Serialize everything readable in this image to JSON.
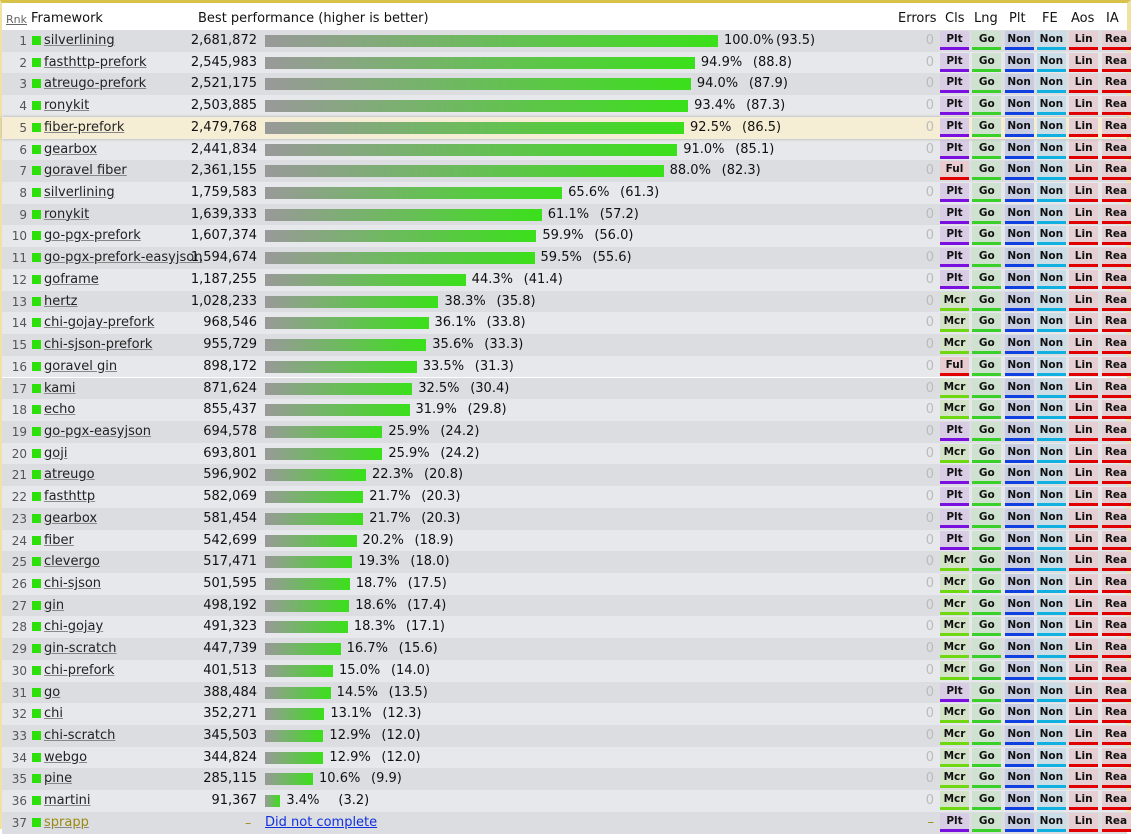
{
  "header": {
    "rank": "Rnk",
    "framework": "Framework",
    "performance": "Best performance (higher is better)",
    "errors": "Errors",
    "cls": "Cls",
    "lng": "Lng",
    "plt": "Plt",
    "fe": "FE",
    "aos": "Aos",
    "ia": "IA"
  },
  "colors": {
    "Plt": "#7a10e0",
    "Mcr": "#70d810",
    "Ful": "#e00000",
    "Go": "#3ad02a",
    "Non": "#1040e0",
    "NonFE": "#10b0e0",
    "Lin": "#e00000",
    "Rea": "#e00000",
    "highlight": "#f6eed4"
  },
  "highlighted_rank": 5,
  "rows": [
    {
      "rank": "1",
      "name": "silverlining",
      "value": "2,681,872",
      "pct": "100.0%",
      "rel": "(93.5)",
      "p": 100,
      "cls": "Plt"
    },
    {
      "rank": "2",
      "name": "fasthttp-prefork",
      "value": "2,545,983",
      "pct": "94.9%",
      "rel": "(88.8)",
      "p": 94.9,
      "cls": "Plt"
    },
    {
      "rank": "3",
      "name": "atreugo-prefork",
      "value": "2,521,175",
      "pct": "94.0%",
      "rel": "(87.9)",
      "p": 94.0,
      "cls": "Plt"
    },
    {
      "rank": "4",
      "name": "ronykit",
      "value": "2,503,885",
      "pct": "93.4%",
      "rel": "(87.3)",
      "p": 93.4,
      "cls": "Plt"
    },
    {
      "rank": "5",
      "name": "fiber-prefork",
      "value": "2,479,768",
      "pct": "92.5%",
      "rel": "(86.5)",
      "p": 92.5,
      "cls": "Plt"
    },
    {
      "rank": "6",
      "name": "gearbox",
      "value": "2,441,834",
      "pct": "91.0%",
      "rel": "(85.1)",
      "p": 91.0,
      "cls": "Plt"
    },
    {
      "rank": "7",
      "name": "goravel fiber",
      "value": "2,361,155",
      "pct": "88.0%",
      "rel": "(82.3)",
      "p": 88.0,
      "cls": "Ful"
    },
    {
      "rank": "8",
      "name": "silverlining",
      "value": "1,759,583",
      "pct": "65.6%",
      "rel": "(61.3)",
      "p": 65.6,
      "cls": "Plt"
    },
    {
      "rank": "9",
      "name": "ronykit",
      "value": "1,639,333",
      "pct": "61.1%",
      "rel": "(57.2)",
      "p": 61.1,
      "cls": "Plt"
    },
    {
      "rank": "10",
      "name": "go-pgx-prefork",
      "value": "1,607,374",
      "pct": "59.9%",
      "rel": "(56.0)",
      "p": 59.9,
      "cls": "Plt"
    },
    {
      "rank": "11",
      "name": "go-pgx-prefork-easyjson",
      "value": "1,594,674",
      "pct": "59.5%",
      "rel": "(55.6)",
      "p": 59.5,
      "cls": "Plt"
    },
    {
      "rank": "12",
      "name": "goframe",
      "value": "1,187,255",
      "pct": "44.3%",
      "rel": "(41.4)",
      "p": 44.3,
      "cls": "Plt"
    },
    {
      "rank": "13",
      "name": "hertz",
      "value": "1,028,233",
      "pct": "38.3%",
      "rel": "(35.8)",
      "p": 38.3,
      "cls": "Mcr"
    },
    {
      "rank": "14",
      "name": "chi-gojay-prefork",
      "value": "968,546",
      "pct": "36.1%",
      "rel": "(33.8)",
      "p": 36.1,
      "cls": "Mcr"
    },
    {
      "rank": "15",
      "name": "chi-sjson-prefork",
      "value": "955,729",
      "pct": "35.6%",
      "rel": "(33.3)",
      "p": 35.6,
      "cls": "Mcr"
    },
    {
      "rank": "16",
      "name": "goravel gin",
      "value": "898,172",
      "pct": "33.5%",
      "rel": "(31.3)",
      "p": 33.5,
      "cls": "Ful"
    },
    {
      "rank": "17",
      "name": "kami",
      "value": "871,624",
      "pct": "32.5%",
      "rel": "(30.4)",
      "p": 32.5,
      "cls": "Mcr"
    },
    {
      "rank": "18",
      "name": "echo",
      "value": "855,437",
      "pct": "31.9%",
      "rel": "(29.8)",
      "p": 31.9,
      "cls": "Mcr"
    },
    {
      "rank": "19",
      "name": "go-pgx-easyjson",
      "value": "694,578",
      "pct": "25.9%",
      "rel": "(24.2)",
      "p": 25.9,
      "cls": "Plt"
    },
    {
      "rank": "20",
      "name": "goji",
      "value": "693,801",
      "pct": "25.9%",
      "rel": "(24.2)",
      "p": 25.9,
      "cls": "Mcr"
    },
    {
      "rank": "21",
      "name": "atreugo",
      "value": "596,902",
      "pct": "22.3%",
      "rel": "(20.8)",
      "p": 22.3,
      "cls": "Plt"
    },
    {
      "rank": "22",
      "name": "fasthttp",
      "value": "582,069",
      "pct": "21.7%",
      "rel": "(20.3)",
      "p": 21.7,
      "cls": "Plt"
    },
    {
      "rank": "23",
      "name": "gearbox",
      "value": "581,454",
      "pct": "21.7%",
      "rel": "(20.3)",
      "p": 21.7,
      "cls": "Plt"
    },
    {
      "rank": "24",
      "name": "fiber",
      "value": "542,699",
      "pct": "20.2%",
      "rel": "(18.9)",
      "p": 20.2,
      "cls": "Plt"
    },
    {
      "rank": "25",
      "name": "clevergo",
      "value": "517,471",
      "pct": "19.3%",
      "rel": "(18.0)",
      "p": 19.3,
      "cls": "Mcr"
    },
    {
      "rank": "26",
      "name": "chi-sjson",
      "value": "501,595",
      "pct": "18.7%",
      "rel": "(17.5)",
      "p": 18.7,
      "cls": "Mcr"
    },
    {
      "rank": "27",
      "name": "gin",
      "value": "498,192",
      "pct": "18.6%",
      "rel": "(17.4)",
      "p": 18.6,
      "cls": "Mcr"
    },
    {
      "rank": "28",
      "name": "chi-gojay",
      "value": "491,323",
      "pct": "18.3%",
      "rel": "(17.1)",
      "p": 18.3,
      "cls": "Mcr"
    },
    {
      "rank": "29",
      "name": "gin-scratch",
      "value": "447,739",
      "pct": "16.7%",
      "rel": "(15.6)",
      "p": 16.7,
      "cls": "Mcr"
    },
    {
      "rank": "30",
      "name": "chi-prefork",
      "value": "401,513",
      "pct": "15.0%",
      "rel": "(14.0)",
      "p": 15.0,
      "cls": "Mcr"
    },
    {
      "rank": "31",
      "name": "go",
      "value": "388,484",
      "pct": "14.5%",
      "rel": "(13.5)",
      "p": 14.5,
      "cls": "Plt"
    },
    {
      "rank": "32",
      "name": "chi",
      "value": "352,271",
      "pct": "13.1%",
      "rel": "(12.3)",
      "p": 13.1,
      "cls": "Mcr"
    },
    {
      "rank": "33",
      "name": "chi-scratch",
      "value": "345,503",
      "pct": "12.9%",
      "rel": "(12.0)",
      "p": 12.9,
      "cls": "Mcr"
    },
    {
      "rank": "34",
      "name": "webgo",
      "value": "344,824",
      "pct": "12.9%",
      "rel": "(12.0)",
      "p": 12.9,
      "cls": "Mcr"
    },
    {
      "rank": "35",
      "name": "pine",
      "value": "285,115",
      "pct": "10.6%",
      "rel": "(9.9)",
      "p": 10.6,
      "cls": "Mcr"
    },
    {
      "rank": "36",
      "name": "martini",
      "value": "91,367",
      "pct": "3.4%",
      "rel": "(3.2)",
      "p": 3.4,
      "cls": "Mcr"
    },
    {
      "rank": "37",
      "name": "sprapp",
      "value": "–",
      "dnc": "Did not complete",
      "cls": "Plt",
      "errors": "–"
    }
  ],
  "defaults": {
    "errors": "0",
    "lng": "Go",
    "plt": "Non",
    "fe": "Non",
    "aos": "Lin",
    "ia": "Rea"
  }
}
